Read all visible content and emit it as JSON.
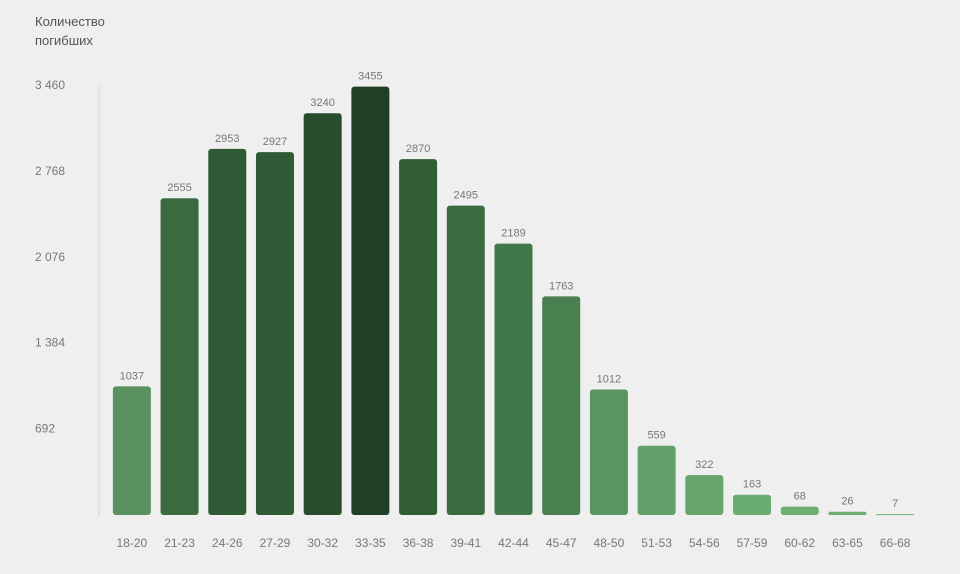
{
  "chart_data": {
    "type": "bar",
    "y_axis_title": "Количество погибших",
    "categories": [
      "18-20",
      "21-23",
      "24-26",
      "27-29",
      "30-32",
      "33-35",
      "36-38",
      "39-41",
      "42-44",
      "45-47",
      "48-50",
      "51-53",
      "54-56",
      "57-59",
      "60-62",
      "63-65",
      "66-68"
    ],
    "values": [
      1037,
      2555,
      2953,
      2927,
      3240,
      3455,
      2870,
      2495,
      2189,
      1763,
      1012,
      559,
      322,
      163,
      68,
      26,
      7
    ],
    "colors": [
      "#5a9160",
      "#3a6b40",
      "#2f5a35",
      "#2f5a35",
      "#284d2d",
      "#223f26",
      "#305c36",
      "#3b6c41",
      "#42774a",
      "#4a8050",
      "#5a9461",
      "#61a068",
      "#66a66c",
      "#6aab70",
      "#6dae72",
      "#6dae72",
      "#6dae72"
    ],
    "ylim": [
      0,
      3460
    ],
    "yticks": [
      {
        "value": 692,
        "label": "692"
      },
      {
        "value": 1384,
        "label": "1 384"
      },
      {
        "value": 2076,
        "label": "2 076"
      },
      {
        "value": 2768,
        "label": "2 768"
      },
      {
        "value": 3460,
        "label": "3 460"
      }
    ],
    "grid": false
  }
}
